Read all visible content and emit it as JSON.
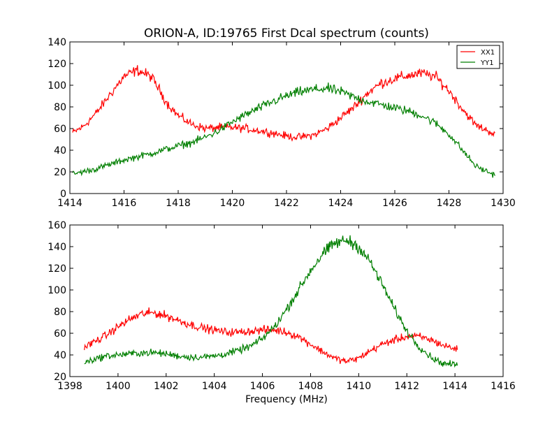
{
  "title": "ORION-A, ID:19765 First Dcal spectrum (counts)",
  "colors": {
    "xx1": "#ff0000",
    "yy1": "#007f00"
  },
  "chart_data": [
    {
      "type": "line",
      "xlim": [
        1414,
        1430
      ],
      "ylim": [
        0,
        140
      ],
      "xticks": [
        1414,
        1416,
        1418,
        1420,
        1422,
        1424,
        1426,
        1428,
        1430
      ],
      "yticks": [
        0,
        20,
        40,
        60,
        80,
        100,
        120,
        140
      ],
      "xlabel": "",
      "grid": false,
      "legend": "top-right",
      "series": [
        {
          "name": "XX1",
          "color": "#ff0000",
          "x": [
            1414.1,
            1414.5,
            1415.0,
            1415.5,
            1416.0,
            1416.5,
            1417.0,
            1417.3,
            1417.6,
            1418.0,
            1418.5,
            1419.0,
            1419.5,
            1420.0,
            1420.5,
            1421.0,
            1421.5,
            1422.0,
            1422.5,
            1423.0,
            1423.5,
            1424.0,
            1424.5,
            1425.0,
            1425.5,
            1426.0,
            1426.5,
            1427.0,
            1427.5,
            1428.0,
            1428.5,
            1429.0,
            1429.7
          ],
          "y": [
            56,
            62,
            75,
            92,
            108,
            114,
            108,
            96,
            83,
            72,
            64,
            60,
            61,
            61,
            60,
            58,
            56,
            53,
            52,
            54,
            60,
            70,
            80,
            93,
            102,
            106,
            109,
            111,
            108,
            95,
            78,
            63,
            55
          ]
        },
        {
          "name": "YY1",
          "color": "#007f00",
          "x": [
            1414.1,
            1415.0,
            1416.0,
            1417.0,
            1418.0,
            1418.5,
            1419.0,
            1419.5,
            1420.0,
            1420.5,
            1421.0,
            1421.5,
            1422.0,
            1422.5,
            1423.0,
            1423.5,
            1424.0,
            1424.5,
            1425.0,
            1425.5,
            1426.0,
            1426.5,
            1427.0,
            1427.5,
            1428.0,
            1428.5,
            1429.0,
            1429.7
          ],
          "y": [
            18,
            23,
            31,
            37,
            44,
            47,
            52,
            58,
            66,
            73,
            79,
            85,
            90,
            94,
            96,
            97,
            94,
            89,
            85,
            82,
            79,
            76,
            72,
            65,
            55,
            40,
            25,
            17
          ]
        }
      ]
    },
    {
      "type": "line",
      "xlim": [
        1398,
        1416
      ],
      "ylim": [
        20,
        160
      ],
      "xticks": [
        1398,
        1400,
        1402,
        1404,
        1406,
        1408,
        1410,
        1412,
        1414,
        1416
      ],
      "yticks": [
        20,
        40,
        60,
        80,
        100,
        120,
        140,
        160
      ],
      "xlabel": "Frequency (MHz)",
      "grid": false,
      "series": [
        {
          "name": "XX1",
          "color": "#ff0000",
          "x": [
            1398.6,
            1399.0,
            1399.5,
            1400.0,
            1400.5,
            1401.0,
            1401.5,
            1402.0,
            1402.5,
            1403.0,
            1403.5,
            1404.0,
            1404.5,
            1405.0,
            1405.5,
            1406.0,
            1406.5,
            1407.0,
            1407.5,
            1408.0,
            1408.5,
            1409.0,
            1409.5,
            1410.0,
            1410.5,
            1411.0,
            1411.5,
            1412.0,
            1412.5,
            1413.0,
            1413.5,
            1414.1
          ],
          "y": [
            47,
            52,
            58,
            66,
            73,
            78,
            79,
            76,
            72,
            68,
            65,
            63,
            61,
            61,
            62,
            63,
            63,
            61,
            57,
            50,
            43,
            37,
            34,
            37,
            44,
            50,
            54,
            57,
            57,
            54,
            49,
            45
          ]
        },
        {
          "name": "YY1",
          "color": "#007f00",
          "x": [
            1398.6,
            1399.0,
            1399.5,
            1400.0,
            1400.5,
            1401.0,
            1401.5,
            1402.0,
            1402.5,
            1403.0,
            1403.5,
            1404.0,
            1404.5,
            1405.0,
            1405.5,
            1406.0,
            1406.5,
            1407.0,
            1407.5,
            1408.0,
            1408.5,
            1409.0,
            1409.5,
            1410.0,
            1410.5,
            1411.0,
            1411.5,
            1412.0,
            1412.5,
            1413.0,
            1413.5,
            1414.1
          ],
          "y": [
            33,
            36,
            39,
            40,
            41,
            42,
            42,
            41,
            39,
            38,
            38,
            39,
            41,
            44,
            48,
            55,
            66,
            82,
            100,
            118,
            133,
            143,
            146,
            140,
            125,
            104,
            82,
            62,
            48,
            38,
            32,
            31
          ]
        }
      ]
    }
  ]
}
